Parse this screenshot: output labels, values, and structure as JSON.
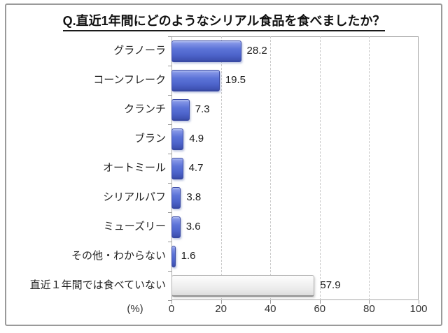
{
  "title": "Q.直近1年間にどのようなシリアル食品を食べましたか？",
  "colors": {
    "bar_blue": "#5d74d8",
    "bar_blue_border": "#3a4aa5",
    "bar_gray": "#ececec",
    "bar_gray_border": "#b3b3b3",
    "gridline": "#c9c9c9",
    "axis": "#a8a8a8",
    "frame_border": "#9a9a9a",
    "text": "#1a1a1a"
  },
  "chart_data": {
    "type": "bar",
    "orientation": "horizontal",
    "title": "Q.直近1年間にどのようなシリアル食品を食べましたか？",
    "categories": [
      "グラノーラ",
      "コーンフレーク",
      "クランチ",
      "ブラン",
      "オートミール",
      "シリアルパフ",
      "ミューズリー",
      "その他・わからない",
      "直近１年間では食べていない"
    ],
    "values": [
      28.2,
      19.5,
      7.3,
      4.9,
      4.7,
      3.8,
      3.6,
      1.6,
      57.9
    ],
    "value_labels": [
      "28.2",
      "19.5",
      "7.3",
      "4.9",
      "4.7",
      "3.8",
      "3.6",
      "1.6",
      "57.9"
    ],
    "bar_styles": [
      "blue",
      "blue",
      "blue",
      "blue",
      "blue",
      "blue",
      "blue",
      "blue",
      "gray"
    ],
    "xlabel": "(%)",
    "xlim": [
      0,
      100
    ],
    "xticks": [
      0,
      20,
      40,
      60,
      80,
      100
    ],
    "grid": "vertical-dashed",
    "legend": "none"
  }
}
